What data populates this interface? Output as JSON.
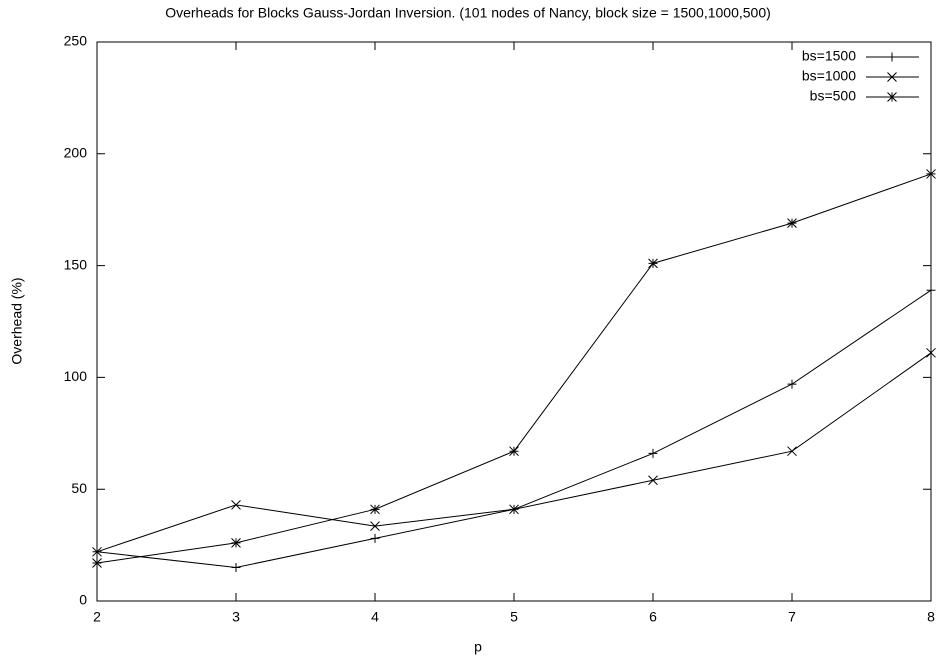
{
  "chart_data": {
    "type": "line",
    "title": "Overheads for Blocks Gauss-Jordan Inversion. (101 nodes of Nancy, block size = 1500,1000,500)",
    "x_label": "p",
    "y_label": "Overhead (%)",
    "x": [
      2,
      3,
      4,
      5,
      6,
      7,
      8
    ],
    "series": [
      {
        "name": "bs=1500",
        "color": "#000000",
        "marker": "plus",
        "values": [
          22,
          15,
          28,
          41,
          66,
          97,
          139
        ]
      },
      {
        "name": "bs=1000",
        "color": "#000000",
        "marker": "cross",
        "values": [
          22,
          43,
          33.5,
          41,
          54,
          67,
          111
        ]
      },
      {
        "name": "bs=500",
        "color": "#000000",
        "marker": "star",
        "values": [
          17,
          26,
          41,
          67,
          151,
          169,
          191
        ]
      }
    ],
    "xlim": [
      2,
      8
    ],
    "xticks": [
      2,
      3,
      4,
      5,
      6,
      7,
      8
    ],
    "ylim": [
      0,
      250
    ],
    "yticks": [
      0,
      50,
      100,
      150,
      200,
      250
    ],
    "grid": false,
    "legend": "top-right"
  }
}
